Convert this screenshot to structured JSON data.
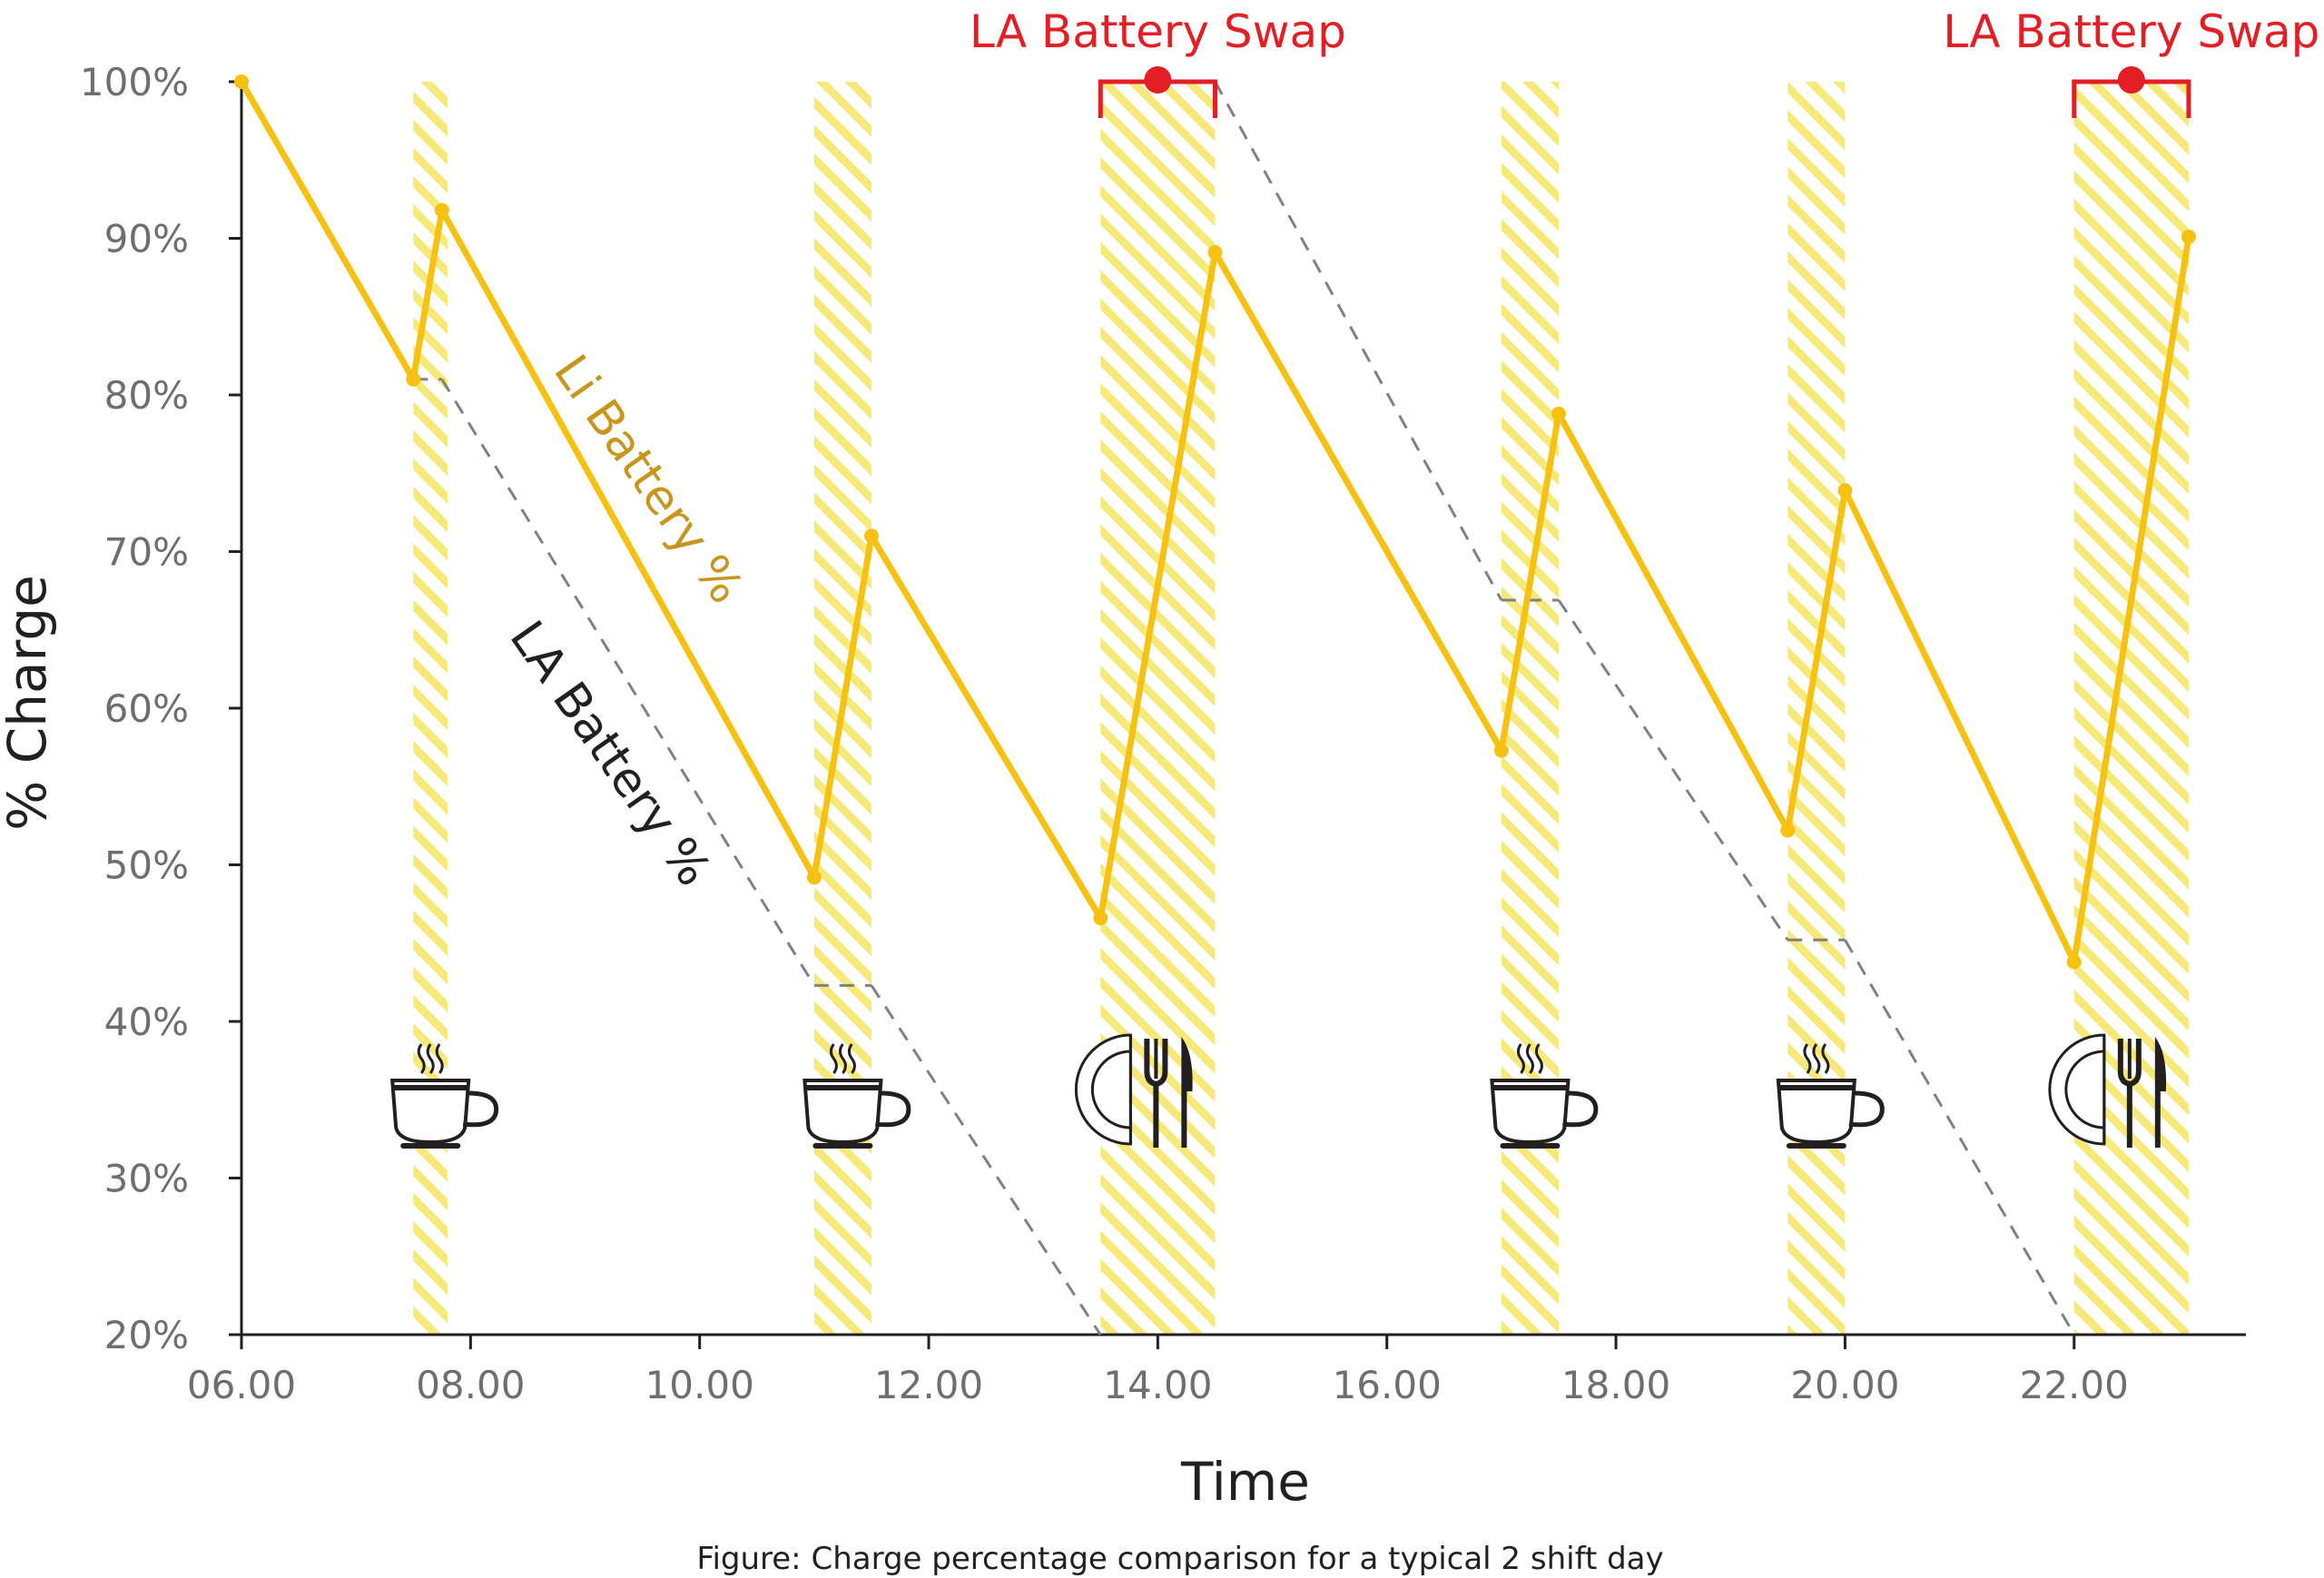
{
  "chart_data": {
    "type": "line",
    "caption": "Figure: Charge percentage comparison for a typical 2 shift day",
    "xlabel": "Time",
    "ylabel": "% Charge",
    "xlim": [
      6,
      23.5
    ],
    "ylim": [
      20,
      100
    ],
    "x_ticks": [
      {
        "value": 6,
        "label": "06.00"
      },
      {
        "value": 8,
        "label": "08.00"
      },
      {
        "value": 10,
        "label": "10.00"
      },
      {
        "value": 12,
        "label": "12.00"
      },
      {
        "value": 14,
        "label": "14.00"
      },
      {
        "value": 16,
        "label": "16.00"
      },
      {
        "value": 18,
        "label": "18.00"
      },
      {
        "value": 20,
        "label": "20.00"
      },
      {
        "value": 22,
        "label": "22.00"
      }
    ],
    "y_ticks": [
      {
        "value": 100,
        "label": "100%"
      },
      {
        "value": 90,
        "label": "90%"
      },
      {
        "value": 80,
        "label": "80%"
      },
      {
        "value": 70,
        "label": "70%"
      },
      {
        "value": 60,
        "label": "60%"
      },
      {
        "value": 50,
        "label": "50%"
      },
      {
        "value": 40,
        "label": "40%"
      },
      {
        "value": 30,
        "label": "30%"
      },
      {
        "value": 20,
        "label": "20%"
      }
    ],
    "series": [
      {
        "name": "Li Battery %",
        "style": "solid",
        "color": "#f7c112",
        "label_color": "#c8961c",
        "points": [
          {
            "x": 6.0,
            "y": 100
          },
          {
            "x": 7.5,
            "y": 81
          },
          {
            "x": 7.75,
            "y": 91.8
          },
          {
            "x": 11.0,
            "y": 49.2
          },
          {
            "x": 11.5,
            "y": 71
          },
          {
            "x": 13.5,
            "y": 46.6
          },
          {
            "x": 14.5,
            "y": 89.1
          },
          {
            "x": 17.0,
            "y": 57.3
          },
          {
            "x": 17.5,
            "y": 78.8
          },
          {
            "x": 19.5,
            "y": 52.2
          },
          {
            "x": 20.0,
            "y": 73.9
          },
          {
            "x": 22.0,
            "y": 43.8
          },
          {
            "x": 23.0,
            "y": 90.1
          }
        ]
      },
      {
        "name": "LA Battery %",
        "style": "dashed",
        "color": "#808080",
        "label_color": "#231f20",
        "points": [
          {
            "x": 6.0,
            "y": 100
          },
          {
            "x": 7.5,
            "y": 81
          },
          {
            "x": 7.75,
            "y": 81
          },
          {
            "x": 11.0,
            "y": 42.3
          },
          {
            "x": 11.5,
            "y": 42.3
          },
          {
            "x": 13.5,
            "y": 20
          },
          {
            "x": 14.5,
            "y": 100
          },
          {
            "x": 17.0,
            "y": 66.9
          },
          {
            "x": 17.5,
            "y": 66.9
          },
          {
            "x": 19.5,
            "y": 45.2
          },
          {
            "x": 20.0,
            "y": 45.2
          },
          {
            "x": 22.0,
            "y": 20
          }
        ]
      }
    ],
    "breaks": [
      {
        "start": 7.5,
        "end": 7.8,
        "icon": "coffee-cup-icon"
      },
      {
        "start": 11.0,
        "end": 11.5,
        "icon": "coffee-cup-icon"
      },
      {
        "start": 13.5,
        "end": 14.5,
        "icon": "plate-fork-knife-icon"
      },
      {
        "start": 17.0,
        "end": 17.5,
        "icon": "coffee-cup-icon"
      },
      {
        "start": 19.5,
        "end": 20.0,
        "icon": "coffee-cup-icon"
      },
      {
        "start": 22.0,
        "end": 23.0,
        "icon": "plate-fork-knife-icon"
      }
    ],
    "break_color": "#f5e97a",
    "annotations": [
      {
        "text": "LA Battery Swap",
        "x_start": 13.5,
        "x_end": 14.5,
        "y": 100,
        "color": "#e31e24"
      },
      {
        "text": "LA Battery Swap",
        "x_start": 22.0,
        "x_end": 23.0,
        "y": 100,
        "color": "#e31e24"
      }
    ]
  }
}
